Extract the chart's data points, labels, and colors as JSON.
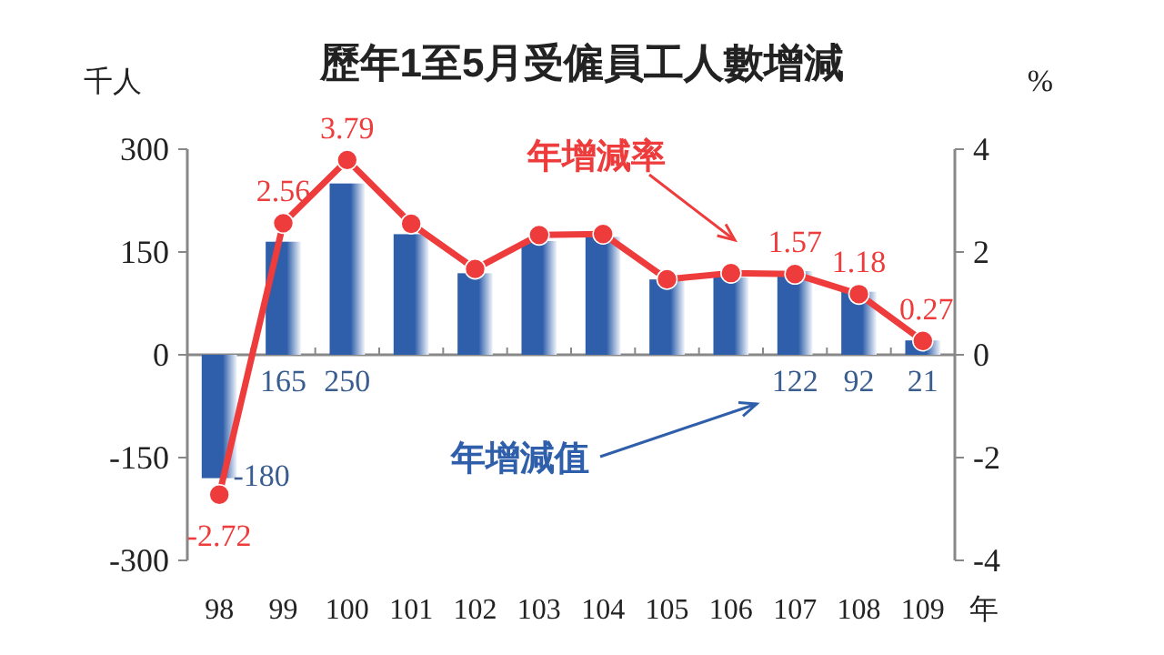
{
  "chart_data": {
    "type": "bar",
    "title": "歷年1至5月受僱員工人數增減",
    "ylabel": "千人",
    "y2label": "%",
    "xlabel": "年",
    "categories": [
      "98",
      "99",
      "100",
      "101",
      "102",
      "103",
      "104",
      "105",
      "106",
      "107",
      "108",
      "109"
    ],
    "series": [
      {
        "color": "#2f5faa",
        "values": [
          -180,
          165,
          250,
          176,
          119,
          166,
          172,
          110,
          113,
          122,
          92,
          21
        ],
        "value_labels": [
          "-180",
          "165",
          "250",
          null,
          null,
          null,
          null,
          null,
          null,
          "122",
          "92",
          "21"
        ]
      },
      {
        "type": "line",
        "axis": "y2",
        "color": "#ee3b3b",
        "values": [
          -2.72,
          2.56,
          3.79,
          2.55,
          1.67,
          2.33,
          2.35,
          1.47,
          1.59,
          1.57,
          1.18,
          0.27
        ],
        "value_labels": [
          "-2.72",
          "2.56",
          "3.79",
          null,
          null,
          null,
          null,
          null,
          null,
          "1.57",
          "1.18",
          "0.27"
        ]
      }
    ],
    "ylim": [
      -300,
      300
    ],
    "yticks": [
      -300,
      -150,
      0,
      150,
      300
    ],
    "y2lim": [
      -4,
      4
    ],
    "y2ticks": [
      -4,
      -2,
      0,
      2,
      4
    ],
    "annotations": [
      "年增減率",
      "年增減值"
    ],
    "marker": "circle"
  }
}
